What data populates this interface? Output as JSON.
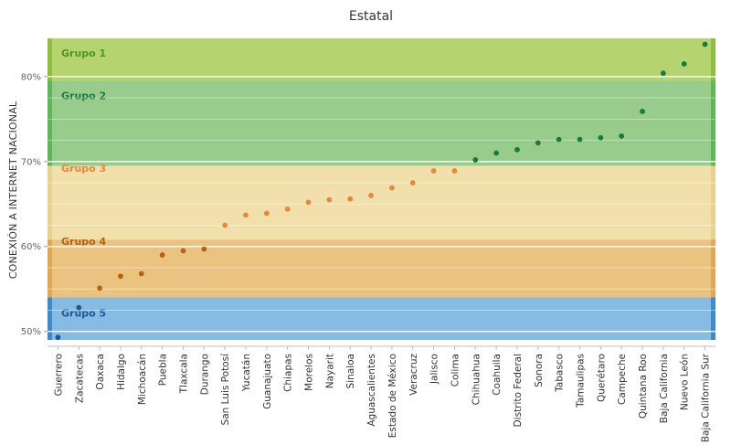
{
  "chart_data": {
    "type": "scatter",
    "title": "Estatal",
    "xlabel": "",
    "ylabel": "CONEXIÓN A INTERNET NACIONAL",
    "ylim": [
      49,
      84.5
    ],
    "yticks": [
      "50%",
      "60%",
      "70%",
      "80%"
    ],
    "ytick_values": [
      50,
      60,
      70,
      80
    ],
    "grid": true,
    "bands": [
      {
        "name": "Grupo 1",
        "from": 79.5,
        "to": 84.5,
        "fill": "#b5d36f",
        "edge": "#8dbf3c",
        "text_color": "#4a9a1a",
        "label_y": 82.8
      },
      {
        "name": "Grupo 2",
        "from": 69.5,
        "to": 79.5,
        "fill": "#98cc8c",
        "edge": "#5fb559",
        "text_color": "#1a7a3a",
        "label_y": 77.8
      },
      {
        "name": "Grupo 3",
        "from": 60.8,
        "to": 69.5,
        "fill": "#f1e0ab",
        "edge": "#e8d18a",
        "text_color": "#e8873a",
        "label_y": 69.2
      },
      {
        "name": "Grupo 4",
        "from": 54.0,
        "to": 60.8,
        "fill": "#ebc380",
        "edge": "#e0a850",
        "text_color": "#b8620c",
        "label_y": 60.6
      },
      {
        "name": "Grupo 5",
        "from": 49.0,
        "to": 54.0,
        "fill": "#86bbe3",
        "edge": "#3d8cc9",
        "text_color": "#1a5a9a",
        "label_y": 52.2
      }
    ],
    "categories": [
      "Guerrero",
      "Zacatecas",
      "Oaxaca",
      "Hidalgo",
      "Michoacán",
      "Puebla",
      "Tlaxcala",
      "Durango",
      "San Luis Potosí",
      "Yucatán",
      "Guanajuato",
      "Chiapas",
      "Morelos",
      "Nayarit",
      "Sinaloa",
      "Aguascalientes",
      "Estado de México",
      "Veracruz",
      "Jalisco",
      "Colima",
      "Chihuahua",
      "Coahuila",
      "Distrito Federal",
      "Sonora",
      "Tabasco",
      "Tamaulipas",
      "Querétaro",
      "Campeche",
      "Quintana Roo",
      "Baja California",
      "Nuevo León",
      "Baja California Sur"
    ],
    "values": [
      49.3,
      52.8,
      55.1,
      56.5,
      56.8,
      59.0,
      59.5,
      59.7,
      62.5,
      63.7,
      63.9,
      64.4,
      65.2,
      65.5,
      65.6,
      66.0,
      66.9,
      67.5,
      68.9,
      68.9,
      70.2,
      71.0,
      71.4,
      72.2,
      72.6,
      72.6,
      72.8,
      73.0,
      75.9,
      80.4,
      81.5,
      83.8
    ],
    "point_colors": [
      "#1a5a9a",
      "#1a5a9a",
      "#b8620c",
      "#b8620c",
      "#b8620c",
      "#b8620c",
      "#b8620c",
      "#b8620c",
      "#e8873a",
      "#e8873a",
      "#e8873a",
      "#e8873a",
      "#e8873a",
      "#e8873a",
      "#e8873a",
      "#e8873a",
      "#e8873a",
      "#e8873a",
      "#e8873a",
      "#e8873a",
      "#1a7a3a",
      "#1a7a3a",
      "#1a7a3a",
      "#1a7a3a",
      "#1a7a3a",
      "#1a7a3a",
      "#1a7a3a",
      "#1a7a3a",
      "#1a7a3a",
      "#1a7a3a",
      "#1a7a3a",
      "#1a7a3a"
    ]
  }
}
